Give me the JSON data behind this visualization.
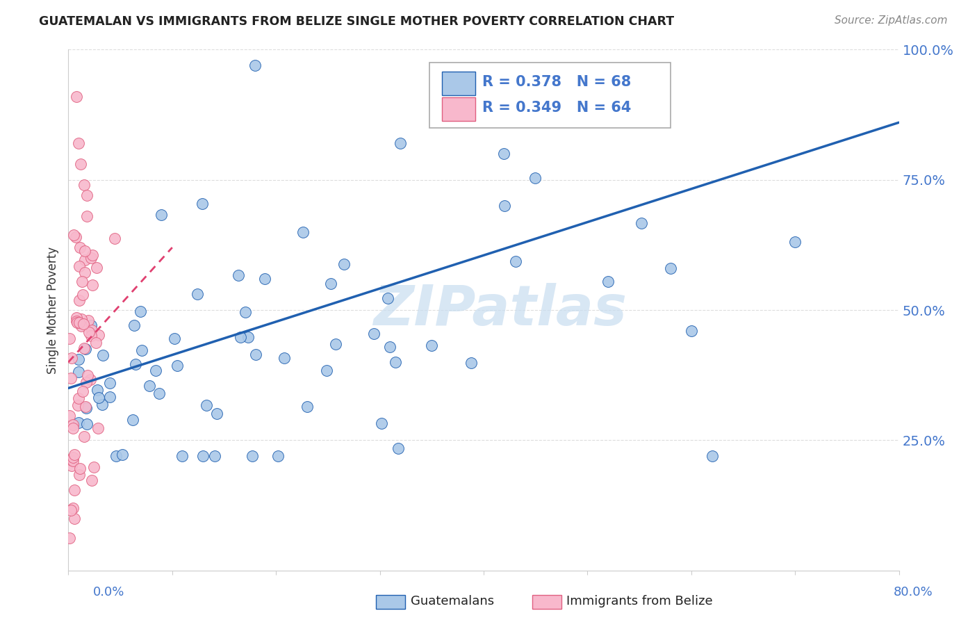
{
  "title": "GUATEMALAN VS IMMIGRANTS FROM BELIZE SINGLE MOTHER POVERTY CORRELATION CHART",
  "source": "Source: ZipAtlas.com",
  "ylabel": "Single Mother Poverty",
  "R_blue": 0.378,
  "N_blue": 68,
  "R_pink": 0.349,
  "N_pink": 64,
  "blue_scatter_color": "#aac8e8",
  "blue_line_color": "#2060b0",
  "pink_scatter_color": "#f8b8cc",
  "pink_scatter_edge": "#e06080",
  "pink_line_color": "#e04070",
  "watermark": "ZIPatlas",
  "legend_label_blue": "Guatemalans",
  "legend_label_pink": "Immigrants from Belize",
  "xmin": 0.0,
  "xmax": 0.8,
  "ymin": 0.0,
  "ymax": 1.0,
  "yticks": [
    0.0,
    0.25,
    0.5,
    0.75,
    1.0
  ],
  "ytick_labels_right": [
    "",
    "25.0%",
    "50.0%",
    "75.0%",
    "100.0%"
  ],
  "blue_line_x0": 0.0,
  "blue_line_y0": 0.35,
  "blue_line_x1": 0.8,
  "blue_line_y1": 0.86,
  "pink_line_x0": 0.0,
  "pink_line_y0": 0.4,
  "pink_line_x1": 0.1,
  "pink_line_y1": 0.62
}
